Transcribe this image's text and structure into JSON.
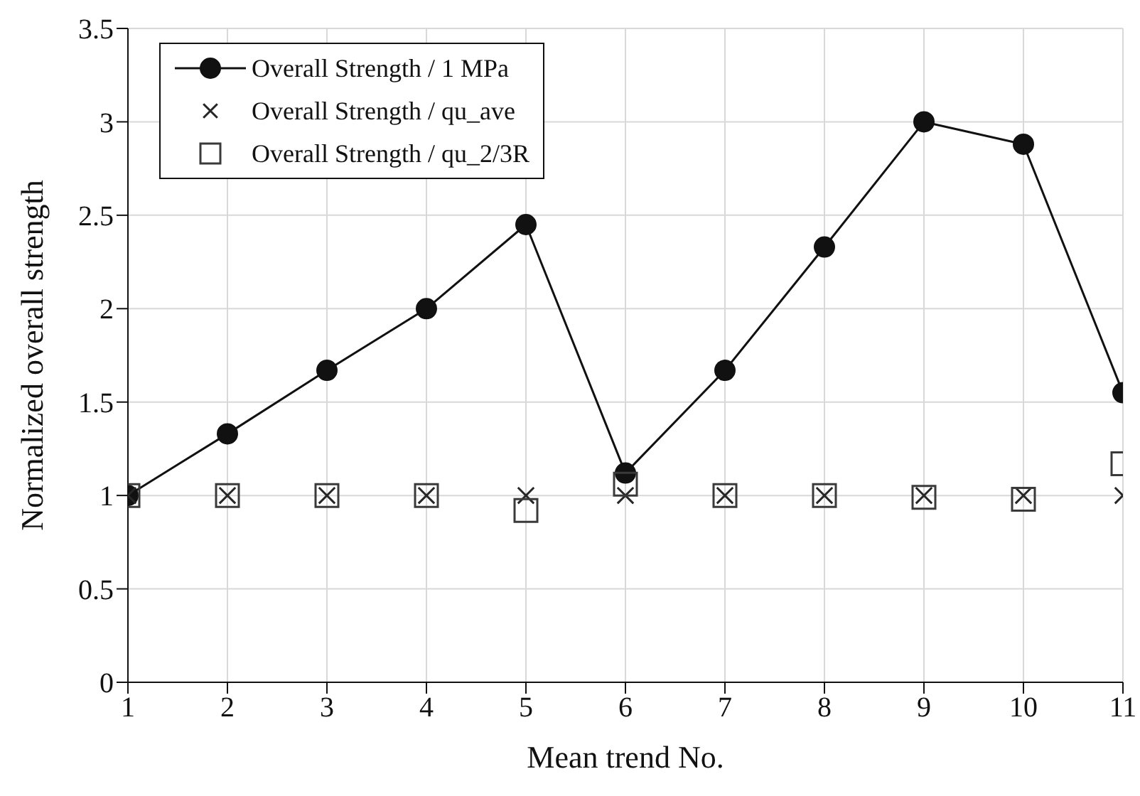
{
  "chart_data": {
    "type": "line",
    "xlabel": "Mean trend No.",
    "ylabel": "Normalized overall strength",
    "x": [
      1,
      2,
      3,
      4,
      5,
      6,
      7,
      8,
      9,
      10,
      11
    ],
    "series": [
      {
        "name": "Overall Strength / 1 MPa",
        "color": "#111111",
        "marker": "circle",
        "line_style": "solid",
        "values": [
          1,
          1.33,
          1.67,
          2.0,
          2.45,
          1.12,
          1.67,
          2.33,
          3.0,
          2.88,
          1.55
        ]
      },
      {
        "name": "Overall Strength / qu_ave",
        "type": "scatter",
        "color": "#262626",
        "marker": "cross",
        "values": [
          1,
          1,
          1,
          1,
          1,
          1,
          1,
          1,
          1,
          1,
          1
        ]
      },
      {
        "name": "Overall Strength / qu_2/3R",
        "type": "scatter",
        "color": "#3a3a3a",
        "marker": "square",
        "values": [
          1,
          1,
          1,
          1,
          0.92,
          1.06,
          1,
          1,
          0.99,
          0.98,
          1.17
        ]
      }
    ],
    "xlim": [
      1,
      11
    ],
    "xticks": [
      1,
      2,
      3,
      4,
      5,
      6,
      7,
      8,
      9,
      10,
      11
    ],
    "ylim": [
      0,
      3.5
    ],
    "yticks": [
      0,
      0.5,
      1,
      1.5,
      2,
      2.5,
      3,
      3.5
    ],
    "grid": true,
    "legend": "top left"
  }
}
